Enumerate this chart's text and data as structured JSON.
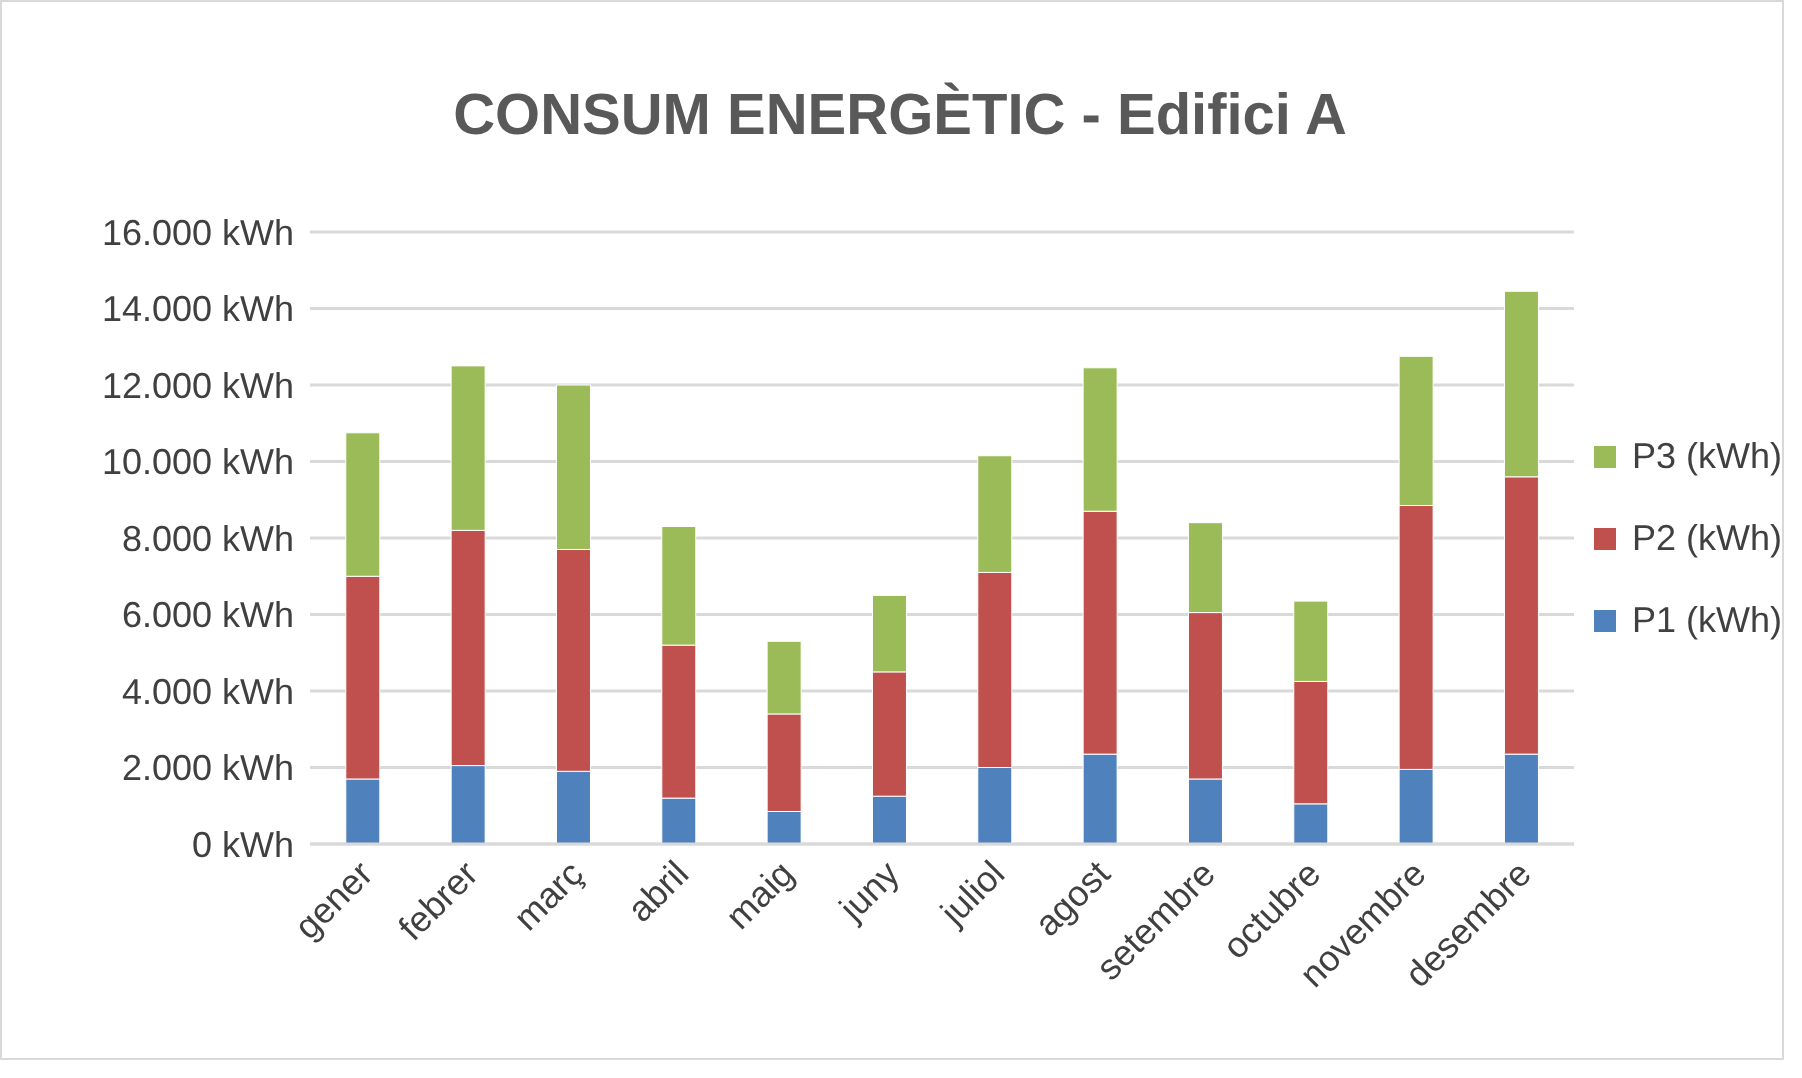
{
  "chart_data": {
    "type": "bar",
    "title": "CONSUM ENERGÈTIC - Edifici A",
    "stacked": true,
    "categories": [
      "gener",
      "febrer",
      "març",
      "abril",
      "maig",
      "juny",
      "juliol",
      "agost",
      "setembre",
      "octubre",
      "novembre",
      "desembre"
    ],
    "series": [
      {
        "name": "P1 (kWh)",
        "color": "#4f81bd",
        "values": [
          1700,
          2050,
          1900,
          1200,
          850,
          1250,
          2000,
          2350,
          1700,
          1050,
          1950,
          2350
        ]
      },
      {
        "name": "P2 (kWh)",
        "color": "#c0504d",
        "values": [
          5300,
          6150,
          5800,
          4000,
          2550,
          3250,
          5100,
          6350,
          4350,
          3200,
          6900,
          7250
        ]
      },
      {
        "name": "P3 (kWh)",
        "color": "#9bbb59",
        "values": [
          3750,
          4300,
          4300,
          3100,
          1900,
          2000,
          3050,
          3750,
          2350,
          2100,
          3900,
          4850
        ]
      }
    ],
    "ylim": [
      0,
      16000
    ],
    "yticks": [
      {
        "value": 0,
        "label": "0 kWh"
      },
      {
        "value": 2000,
        "label": "2.000 kWh"
      },
      {
        "value": 4000,
        "label": "4.000 kWh"
      },
      {
        "value": 6000,
        "label": "6.000 kWh"
      },
      {
        "value": 8000,
        "label": "8.000 kWh"
      },
      {
        "value": 10000,
        "label": "10.000 kWh"
      },
      {
        "value": 12000,
        "label": "12.000 kWh"
      },
      {
        "value": 14000,
        "label": "14.000 kWh"
      },
      {
        "value": 16000,
        "label": "16.000 kWh"
      }
    ],
    "grid": "y",
    "legend": "right"
  }
}
